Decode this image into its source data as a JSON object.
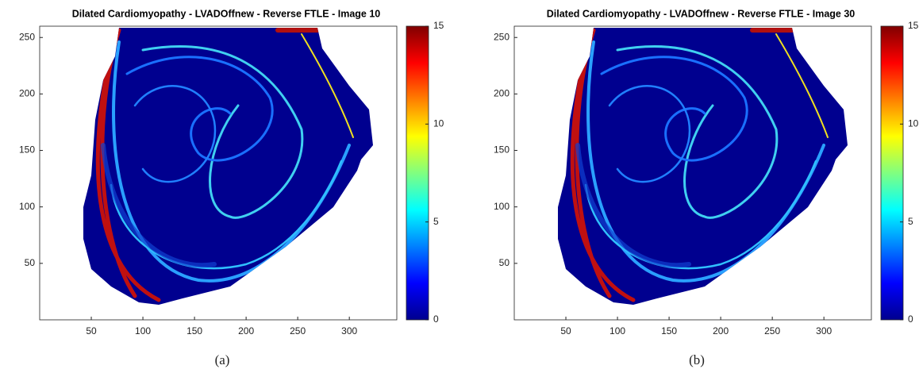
{
  "chart_data": [
    {
      "type": "heatmap",
      "title": "Dilated Cardiomyopathy - LVADOffnew - Reverse FTLE - Image 10",
      "caption": "(a)",
      "xlim": [
        0,
        346
      ],
      "ylim": [
        0,
        260
      ],
      "xticks": [
        50,
        100,
        150,
        200,
        250,
        300
      ],
      "yticks": [
        50,
        100,
        150,
        200,
        250
      ],
      "clim": [
        0,
        15
      ],
      "cticks": [
        0,
        5,
        10,
        15
      ],
      "colormap": "jet"
    },
    {
      "type": "heatmap",
      "title": "Dilated Cardiomyopathy - LVADOffnew - Reverse FTLE - Image 30",
      "caption": "(b)",
      "xlim": [
        0,
        346
      ],
      "ylim": [
        0,
        260
      ],
      "xticks": [
        50,
        100,
        150,
        200,
        250,
        300
      ],
      "yticks": [
        50,
        100,
        150,
        200,
        250
      ],
      "clim": [
        0,
        15
      ],
      "cticks": [
        0,
        5,
        10,
        15
      ],
      "colormap": "jet"
    }
  ]
}
